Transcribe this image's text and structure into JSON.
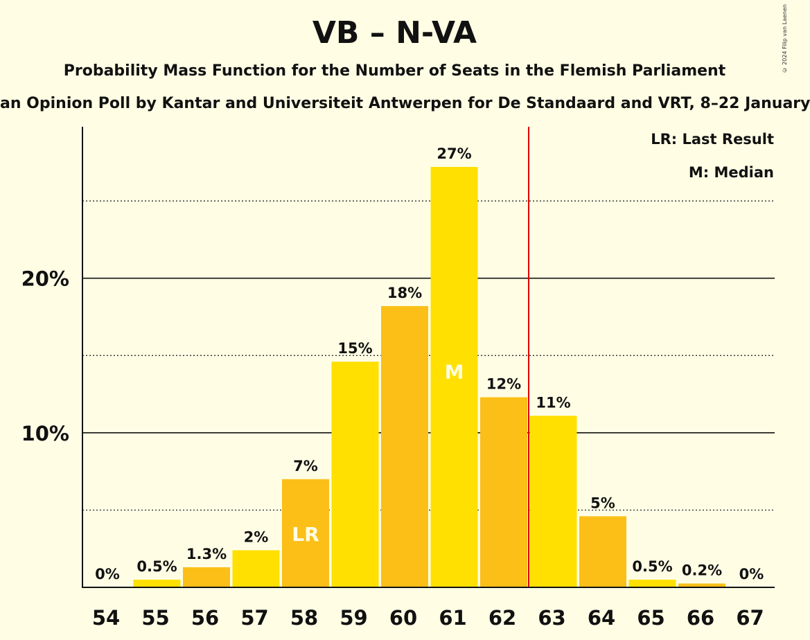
{
  "chart_data": {
    "type": "bar",
    "title": "VB – N-VA",
    "subtitle": "Probability Mass Function for the Number of Seats in the Flemish Parliament",
    "subtitle2": "an Opinion Poll by Kantar and Universiteit Antwerpen for De Standaard and VRT, 8–22 January",
    "copyright": "© 2024 Filip van Laenen",
    "categories": [
      "54",
      "55",
      "56",
      "57",
      "58",
      "59",
      "60",
      "61",
      "62",
      "63",
      "64",
      "65",
      "66",
      "67"
    ],
    "values": [
      0,
      0.5,
      1.3,
      2.4,
      7.0,
      14.6,
      18.2,
      27.2,
      12.3,
      11.1,
      4.6,
      0.5,
      0.25,
      0
    ],
    "value_labels": [
      "0%",
      "0.5%",
      "1.3%",
      "2%",
      "7%",
      "15%",
      "18%",
      "27%",
      "12%",
      "11%",
      "5%",
      "0.5%",
      "0.2%",
      "0%"
    ],
    "y_tick_labels": [
      {
        "value": 10,
        "label": "10%"
      },
      {
        "value": 20,
        "label": "20%"
      }
    ],
    "ylim": [
      0,
      29.8
    ],
    "last_result": "58",
    "median": "61",
    "majority_line_after": "62",
    "bar_marks": {
      "58": "LR",
      "61": "M"
    },
    "legend": {
      "lr": "LR: Last Result",
      "m": "M: Median"
    },
    "colors": {
      "bar_a": "#FFE000",
      "bar_b": "#FBBF17",
      "majority_line": "#E00000",
      "background": "#FFFEE5"
    }
  }
}
